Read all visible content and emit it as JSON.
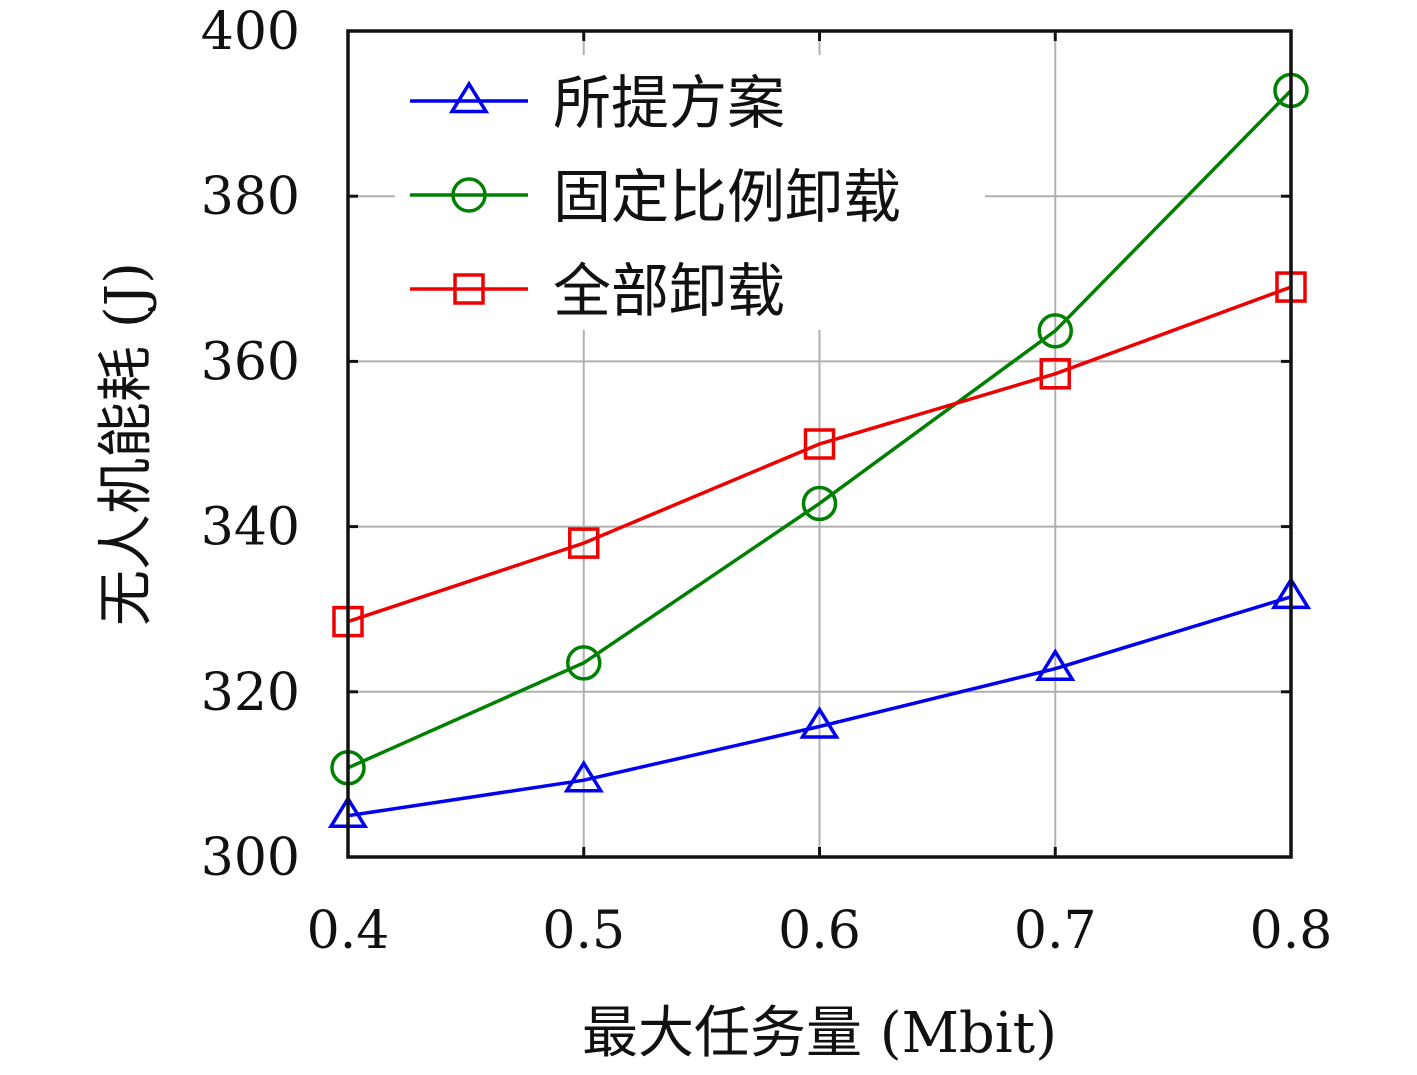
{
  "chart_data": {
    "type": "line",
    "xlabel": "最大任务量 (Mbit)",
    "ylabel": "无人机能耗 (J)",
    "x": [
      0.4,
      0.5,
      0.6,
      0.7,
      0.8
    ],
    "xticks": [
      "0.4",
      "0.5",
      "0.6",
      "0.7",
      "0.8"
    ],
    "yticks": [
      "300",
      "320",
      "340",
      "360",
      "380",
      "400"
    ],
    "xlim": [
      0.4,
      0.8
    ],
    "ylim": [
      300,
      400
    ],
    "grid": true,
    "legend_position": "top-left",
    "series": [
      {
        "name": "所提方案",
        "color": "#0000ee",
        "marker": "triangle",
        "values": [
          305,
          309.3,
          315.8,
          322.8,
          331.5
        ]
      },
      {
        "name": "固定比例卸载",
        "color": "#008000",
        "marker": "circle",
        "values": [
          310.8,
          323.5,
          342.8,
          363.7,
          392.8
        ]
      },
      {
        "name": "全部卸载",
        "color": "#ee0000",
        "marker": "square",
        "values": [
          328.5,
          338,
          350,
          358.5,
          369
        ]
      }
    ]
  }
}
